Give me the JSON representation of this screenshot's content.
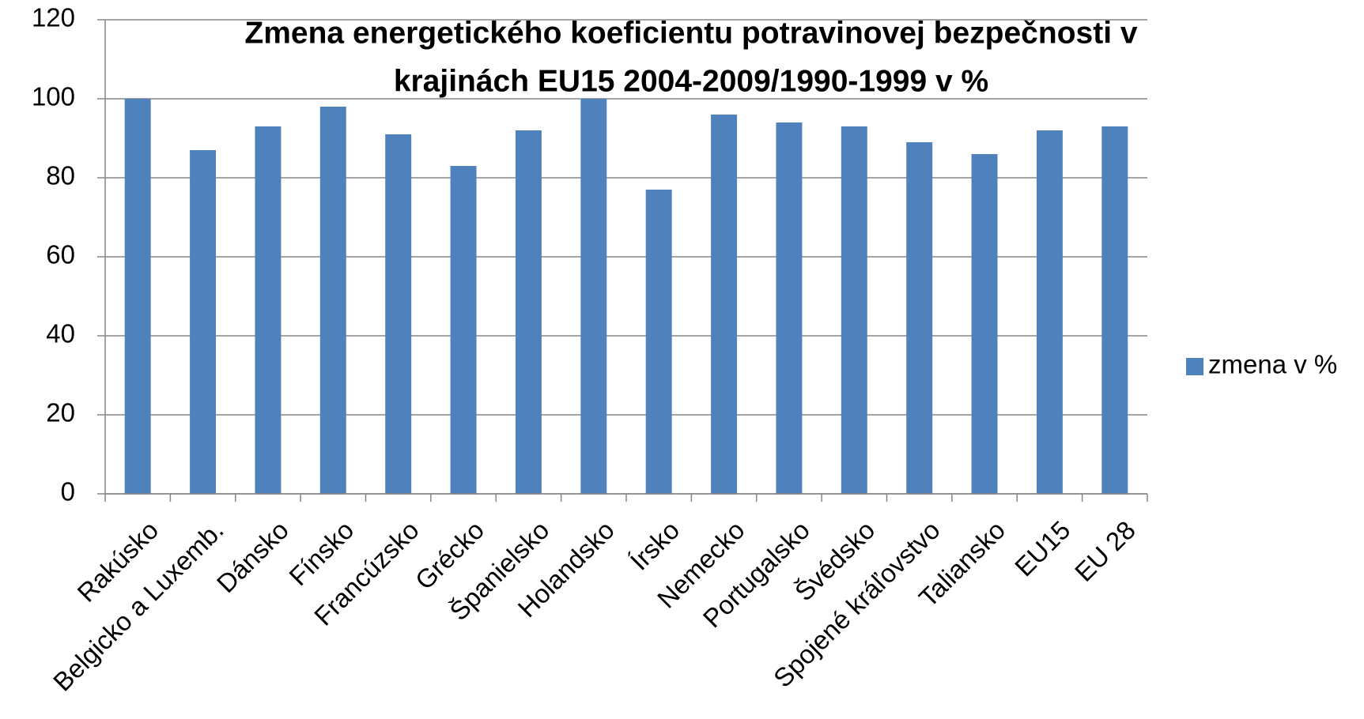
{
  "chart_data": {
    "type": "bar",
    "title": [
      "Zmena energetického koeficientu potravinovej bezpečnosti v",
      "krajinách EU15  2004-2009/1990-1999 v %"
    ],
    "categories": [
      "Rakúsko",
      "Belgicko a Luxemb.",
      "Dánsko",
      "Fínsko",
      "Francúzsko",
      "Grécko",
      "Španielsko",
      "Holandsko",
      "Írsko",
      "Nemecko",
      "Portugalsko",
      "Švédsko",
      "Spojené kráľovstvo",
      "Taliansko",
      "EU15",
      "EU 28"
    ],
    "series": [
      {
        "name": "zmena v %",
        "color": "#4f81bd",
        "values": [
          100,
          87,
          93,
          98,
          91,
          83,
          92,
          100,
          77,
          96,
          94,
          93,
          89,
          86,
          92,
          93
        ]
      }
    ],
    "ylim": [
      0,
      120
    ],
    "yticks": [
      0,
      20,
      40,
      60,
      80,
      100,
      120
    ],
    "grid": true,
    "legend": "right"
  }
}
